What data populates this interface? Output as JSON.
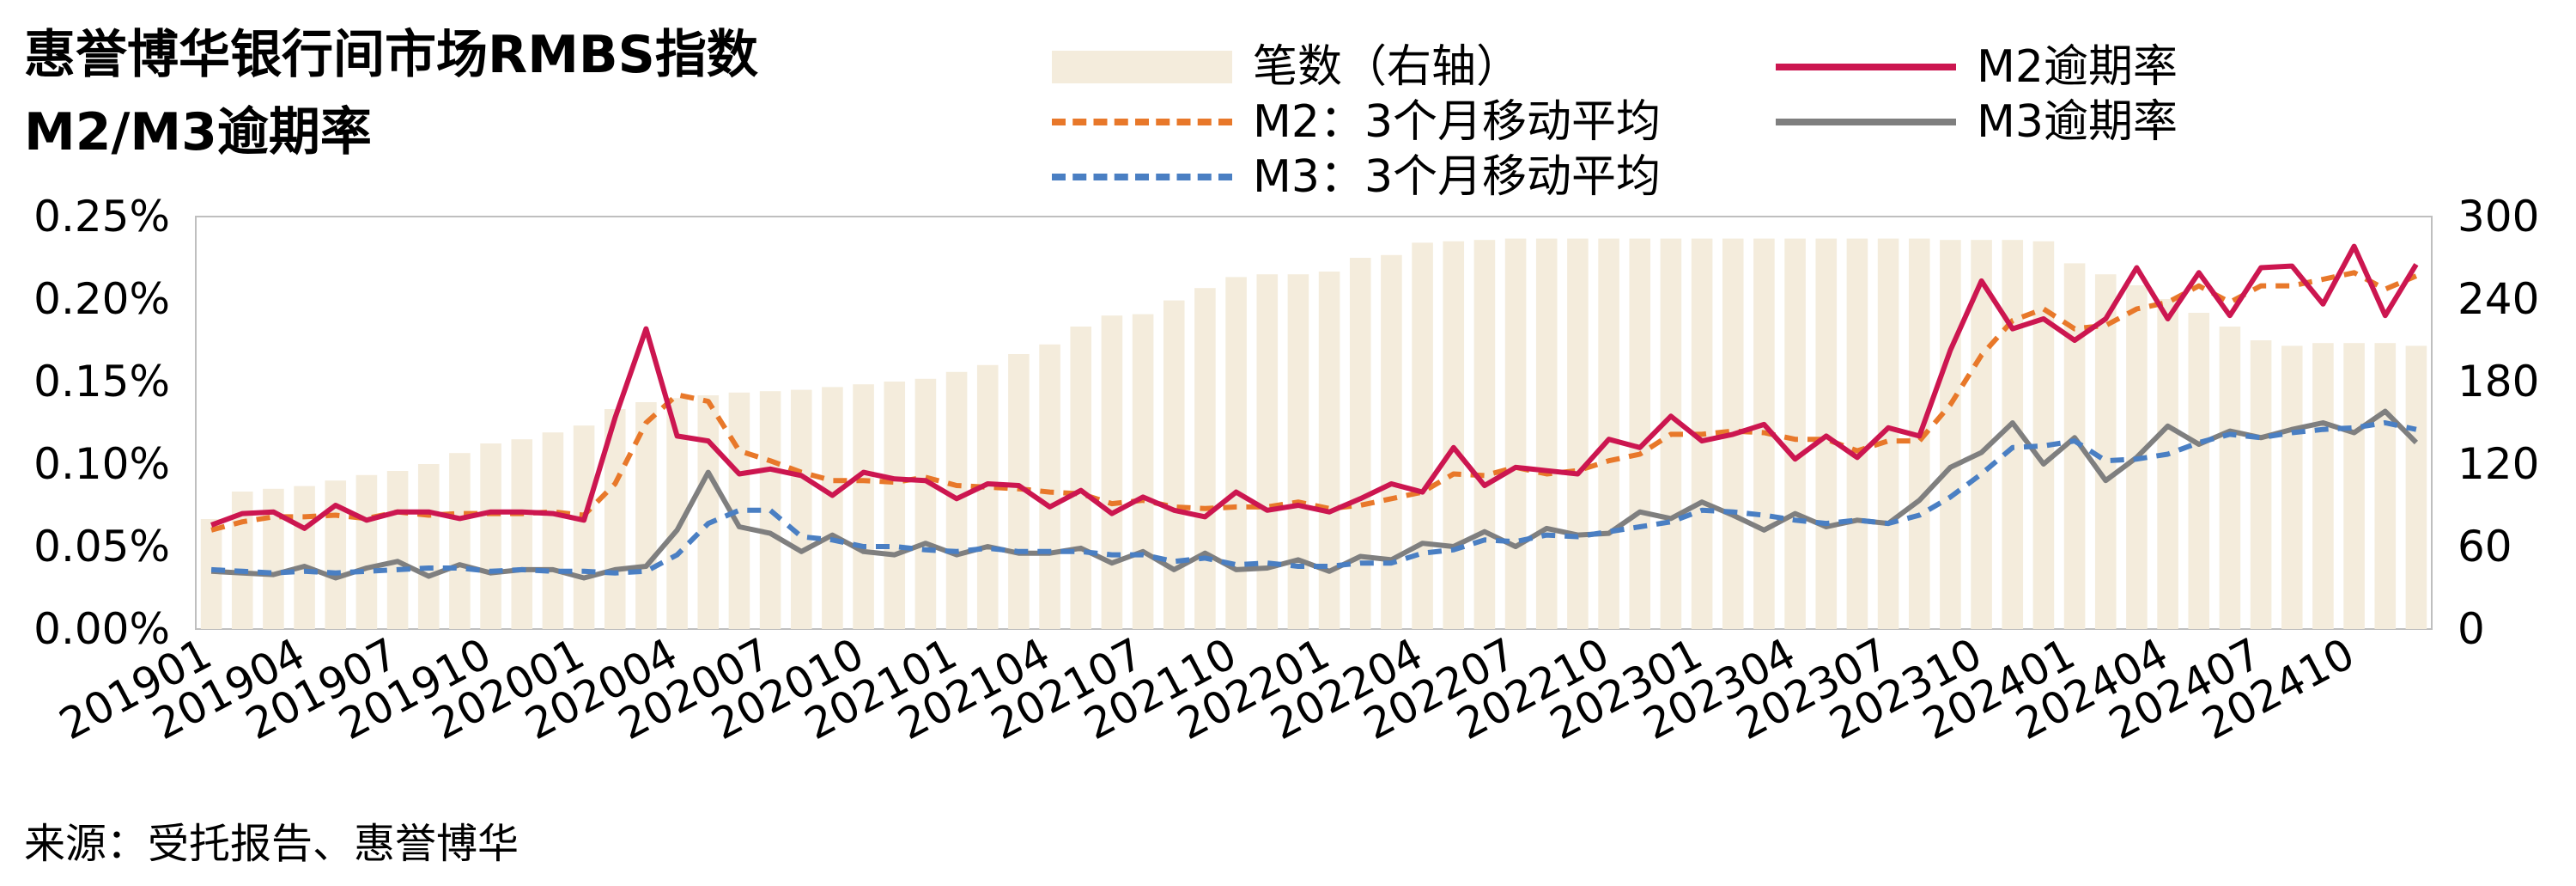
{
  "title_line1": "惠誉博华银行间市场RMBS指数",
  "title_line2": "M2/M3逾期率",
  "legend": {
    "count": "笔数（右轴）",
    "m2_ma": "M2：3个月移动平均",
    "m3_ma": "M3：3个月移动平均",
    "m2": "M2逾期率",
    "m3": "M3逾期率"
  },
  "source": "来源：受托报告、惠誉博华",
  "colors": {
    "count": "#f4ecdc",
    "m2": "#cc1650",
    "m2_ma": "#e8782a",
    "m3": "#7f7f7f",
    "m3_ma": "#4a7fc3",
    "axis": "#bfbfbf"
  },
  "chart_data": {
    "type": "bar+line",
    "x": [
      "201901",
      "201902",
      "201903",
      "201904",
      "201905",
      "201906",
      "201907",
      "201908",
      "201909",
      "201910",
      "201911",
      "201912",
      "202001",
      "202002",
      "202003",
      "202004",
      "202005",
      "202006",
      "202007",
      "202008",
      "202009",
      "202010",
      "202011",
      "202012",
      "202101",
      "202102",
      "202103",
      "202104",
      "202105",
      "202106",
      "202107",
      "202108",
      "202109",
      "202110",
      "202111",
      "202112",
      "202201",
      "202202",
      "202203",
      "202204",
      "202205",
      "202206",
      "202207",
      "202208",
      "202209",
      "202210",
      "202211",
      "202212",
      "202301",
      "202302",
      "202303",
      "202304",
      "202305",
      "202306",
      "202307",
      "202308",
      "202309",
      "202310",
      "202311",
      "202312",
      "202401",
      "202402",
      "202403",
      "202404",
      "202405",
      "202406",
      "202407",
      "202408",
      "202409",
      "202410",
      "202411",
      "202412"
    ],
    "x_tick_labels": [
      "201901",
      "201904",
      "201907",
      "201910",
      "202001",
      "202004",
      "202007",
      "202010",
      "202101",
      "202104",
      "202107",
      "202110",
      "202201",
      "202204",
      "202207",
      "202210",
      "202301",
      "202304",
      "202307",
      "202310",
      "202401",
      "202404",
      "202407",
      "202410"
    ],
    "y_left": {
      "ticks": [
        "0.00%",
        "0.05%",
        "0.10%",
        "0.15%",
        "0.20%",
        "0.25%"
      ],
      "range": [
        0,
        0.25
      ],
      "unit": "%"
    },
    "y_right": {
      "ticks": [
        "0",
        "60",
        "120",
        "180",
        "240",
        "300"
      ],
      "range": [
        0,
        300
      ]
    },
    "bars": {
      "name": "笔数（右轴）",
      "axis": "right",
      "values": [
        80,
        100,
        102,
        104,
        108,
        112,
        115,
        120,
        128,
        135,
        138,
        143,
        148,
        160,
        165,
        168,
        170,
        172,
        173,
        174,
        176,
        178,
        180,
        182,
        187,
        192,
        200,
        207,
        220,
        228,
        229,
        239,
        248,
        256,
        258,
        258,
        260,
        270,
        272,
        281,
        282,
        283,
        284,
        284,
        284,
        284,
        284,
        284,
        284,
        284,
        284,
        284,
        284,
        284,
        284,
        284,
        283,
        283,
        283,
        282,
        266,
        258,
        250,
        240,
        230,
        220,
        210,
        206,
        208,
        208,
        208,
        206
      ]
    },
    "series": [
      {
        "name": "M2逾期率",
        "axis": "left",
        "values": [
          0.063,
          0.07,
          0.071,
          0.061,
          0.075,
          0.066,
          0.071,
          0.071,
          0.067,
          0.071,
          0.071,
          0.07,
          0.066,
          0.128,
          0.182,
          0.117,
          0.114,
          0.094,
          0.097,
          0.093,
          0.081,
          0.095,
          0.091,
          0.09,
          0.079,
          0.088,
          0.087,
          0.074,
          0.084,
          0.07,
          0.08,
          0.072,
          0.068,
          0.083,
          0.072,
          0.075,
          0.071,
          0.079,
          0.088,
          0.083,
          0.11,
          0.087,
          0.098,
          0.096,
          0.094,
          0.115,
          0.11,
          0.129,
          0.114,
          0.118,
          0.124,
          0.103,
          0.117,
          0.104,
          0.122,
          0.117,
          0.169,
          0.211,
          0.182,
          0.188,
          0.175,
          0.188,
          0.219,
          0.188,
          0.216,
          0.19,
          0.219,
          0.22,
          0.197,
          0.232,
          0.19,
          0.221
        ]
      },
      {
        "name": "M2：3个月移动平均",
        "axis": "left",
        "values": [
          0.06,
          0.065,
          0.068,
          0.068,
          0.069,
          0.067,
          0.071,
          0.069,
          0.07,
          0.07,
          0.07,
          0.071,
          0.069,
          0.088,
          0.125,
          0.142,
          0.138,
          0.108,
          0.102,
          0.095,
          0.09,
          0.09,
          0.089,
          0.092,
          0.087,
          0.086,
          0.085,
          0.083,
          0.082,
          0.076,
          0.078,
          0.074,
          0.073,
          0.074,
          0.074,
          0.077,
          0.073,
          0.075,
          0.079,
          0.083,
          0.094,
          0.093,
          0.098,
          0.094,
          0.096,
          0.102,
          0.106,
          0.118,
          0.118,
          0.12,
          0.119,
          0.115,
          0.115,
          0.108,
          0.114,
          0.114,
          0.136,
          0.166,
          0.187,
          0.194,
          0.182,
          0.184,
          0.194,
          0.198,
          0.208,
          0.198,
          0.208,
          0.208,
          0.212,
          0.216,
          0.206,
          0.214
        ]
      },
      {
        "name": "M3逾期率",
        "axis": "left",
        "values": [
          0.035,
          0.034,
          0.033,
          0.038,
          0.031,
          0.037,
          0.041,
          0.032,
          0.039,
          0.034,
          0.036,
          0.036,
          0.031,
          0.036,
          0.038,
          0.06,
          0.095,
          0.062,
          0.058,
          0.047,
          0.057,
          0.047,
          0.045,
          0.052,
          0.045,
          0.05,
          0.046,
          0.046,
          0.049,
          0.04,
          0.047,
          0.036,
          0.046,
          0.036,
          0.037,
          0.042,
          0.035,
          0.044,
          0.042,
          0.052,
          0.05,
          0.059,
          0.05,
          0.061,
          0.057,
          0.058,
          0.071,
          0.067,
          0.077,
          0.069,
          0.06,
          0.07,
          0.062,
          0.066,
          0.064,
          0.078,
          0.098,
          0.107,
          0.125,
          0.1,
          0.116,
          0.09,
          0.104,
          0.123,
          0.112,
          0.12,
          0.116,
          0.121,
          0.125,
          0.119,
          0.132,
          0.113
        ]
      },
      {
        "name": "M3：3个月移动平均",
        "axis": "left",
        "values": [
          0.036,
          0.035,
          0.034,
          0.035,
          0.034,
          0.035,
          0.036,
          0.037,
          0.037,
          0.035,
          0.036,
          0.035,
          0.035,
          0.034,
          0.035,
          0.045,
          0.064,
          0.072,
          0.072,
          0.056,
          0.054,
          0.05,
          0.05,
          0.048,
          0.047,
          0.049,
          0.047,
          0.047,
          0.047,
          0.045,
          0.045,
          0.041,
          0.043,
          0.039,
          0.04,
          0.038,
          0.038,
          0.04,
          0.04,
          0.046,
          0.048,
          0.054,
          0.053,
          0.057,
          0.056,
          0.059,
          0.062,
          0.065,
          0.072,
          0.071,
          0.069,
          0.066,
          0.064,
          0.066,
          0.064,
          0.069,
          0.08,
          0.094,
          0.11,
          0.111,
          0.114,
          0.102,
          0.103,
          0.106,
          0.113,
          0.118,
          0.116,
          0.119,
          0.121,
          0.122,
          0.125,
          0.121
        ]
      }
    ],
    "legend_position": "top-right"
  }
}
